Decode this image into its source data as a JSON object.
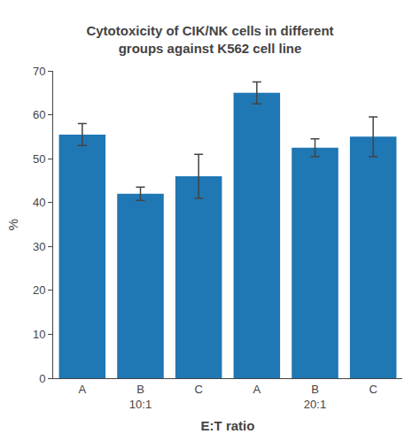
{
  "chart_data": {
    "type": "bar",
    "title": "Cytotoxicity of CIK/NK cells in different\ngroups against K562 cell line",
    "xlabel": "E:T ratio",
    "ylabel": "%",
    "categories": [
      "A",
      "B",
      "C",
      "A",
      "B",
      "C"
    ],
    "groups": [
      "10:1",
      "10:1",
      "10:1",
      "20:1",
      "20:1",
      "20:1"
    ],
    "values": [
      55.5,
      42.0,
      46.0,
      65.0,
      52.5,
      55.0
    ],
    "errors": [
      2.5,
      1.5,
      5.0,
      2.5,
      2.0,
      4.5
    ],
    "ylim": [
      0,
      70
    ],
    "yticks": [
      0,
      10,
      20,
      30,
      40,
      50,
      60,
      70
    ],
    "grid": false
  }
}
